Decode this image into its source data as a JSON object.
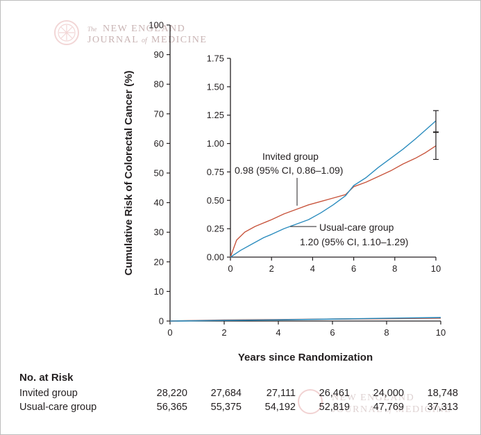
{
  "watermark": {
    "line_the": "The",
    "line_new_england": "NEW ENGLAND",
    "line_journal": "JOURNAL",
    "line_of": "of",
    "line_medicine": "MEDICINE"
  },
  "colors": {
    "invited": "#c8553d",
    "usual_care": "#2b8cbe",
    "axis": "#231f20",
    "watermark": "#e8c4c4"
  },
  "chart_data": [
    {
      "type": "line",
      "title": "",
      "xlabel": "Years since Randomization",
      "ylabel": "Cumulative Risk of Colorectal Cancer (%)",
      "xlim": [
        0,
        10
      ],
      "ylim": [
        0,
        100
      ],
      "x_ticks": [
        "0",
        "2",
        "4",
        "6",
        "8",
        "10"
      ],
      "y_ticks": [
        "0",
        "10",
        "20",
        "30",
        "40",
        "50",
        "60",
        "70",
        "80",
        "90",
        "100"
      ],
      "grid": false,
      "series": [
        {
          "name": "Invited group",
          "color": "#c8553d",
          "x": [
            0,
            2,
            4,
            6,
            8,
            10
          ],
          "y": [
            0,
            0.35,
            0.5,
            0.65,
            0.8,
            0.98
          ]
        },
        {
          "name": "Usual-care group",
          "color": "#2b8cbe",
          "x": [
            0,
            2,
            4,
            6,
            8,
            10
          ],
          "y": [
            0,
            0.2,
            0.4,
            0.65,
            0.93,
            1.2
          ]
        }
      ]
    },
    {
      "type": "line",
      "title": "",
      "xlabel": "",
      "ylabel": "",
      "xlim": [
        0,
        10
      ],
      "ylim": [
        0,
        1.75
      ],
      "x_ticks": [
        "0",
        "2",
        "4",
        "6",
        "8",
        "10"
      ],
      "y_ticks": [
        "0.00",
        "0.25",
        "0.50",
        "0.75",
        "1.00",
        "1.25",
        "1.50",
        "1.75"
      ],
      "grid": false,
      "series": [
        {
          "name": "Invited group",
          "color": "#c8553d",
          "label": "Invited group",
          "estimate": "0.98 (95% CI, 0.86–1.09)",
          "x": [
            0,
            0.3,
            0.7,
            1.2,
            2.0,
            2.6,
            3.2,
            3.8,
            4.4,
            5.0,
            5.6,
            6.0,
            6.6,
            7.2,
            7.8,
            8.4,
            9.0,
            9.5,
            10.0
          ],
          "y": [
            0,
            0.15,
            0.22,
            0.27,
            0.33,
            0.38,
            0.42,
            0.46,
            0.49,
            0.52,
            0.55,
            0.62,
            0.66,
            0.71,
            0.76,
            0.82,
            0.87,
            0.92,
            0.98
          ]
        },
        {
          "name": "Usual-care group",
          "color": "#2b8cbe",
          "label": "Usual-care group",
          "estimate": "1.20 (95% CI, 1.10–1.29)",
          "x": [
            0,
            0.5,
            1.0,
            1.6,
            2.0,
            2.6,
            3.2,
            3.8,
            4.4,
            5.0,
            5.6,
            6.0,
            6.6,
            7.2,
            7.8,
            8.4,
            9.0,
            9.5,
            10.0
          ],
          "y": [
            0,
            0.06,
            0.11,
            0.17,
            0.2,
            0.25,
            0.29,
            0.33,
            0.39,
            0.46,
            0.54,
            0.63,
            0.7,
            0.79,
            0.87,
            0.95,
            1.04,
            1.12,
            1.2
          ]
        }
      ],
      "error_bar": {
        "x": 10,
        "center": 1.1,
        "low": 0.86,
        "high": 1.29
      }
    }
  ],
  "risk_table": {
    "title": "No. at Risk",
    "rows": [
      {
        "label": "Invited group",
        "values": [
          "28,220",
          "27,684",
          "27,111",
          "26,461",
          "24,000",
          "18,748"
        ]
      },
      {
        "label": "Usual-care group",
        "values": [
          "56,365",
          "55,375",
          "54,192",
          "52,819",
          "47,769",
          "37,313"
        ]
      }
    ]
  }
}
